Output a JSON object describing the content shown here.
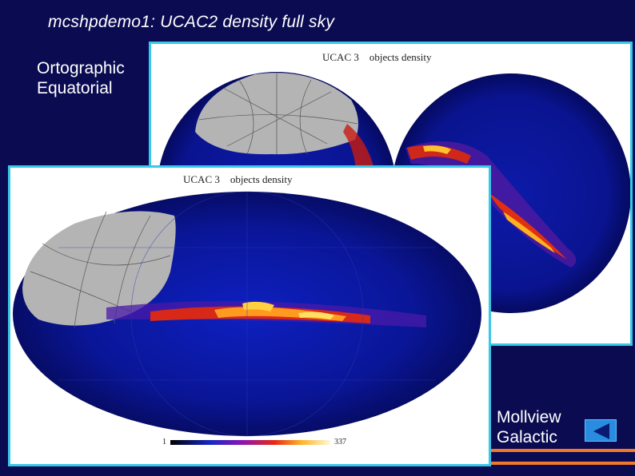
{
  "slide": {
    "title": "mcshpdemo1: UCAC2 density full sky",
    "ortho_label_line1": "Ortographic",
    "ortho_label_line2": "Equatorial",
    "moll_label_line1": "Mollview",
    "moll_label_line2": "Galactic"
  },
  "ortho_map": {
    "title": "UCAC 3    objects density"
  },
  "moll_map": {
    "title": "UCAC 3    objects density",
    "colorbar_min": "1",
    "colorbar_max": "337"
  },
  "nav": {
    "button_icon": "back-arrow-icon"
  },
  "colors": {
    "background": "#0b0b52",
    "panel_border": "#38c8e8",
    "accent_orange": "#f07828",
    "button_blue": "#2a8ce0"
  }
}
